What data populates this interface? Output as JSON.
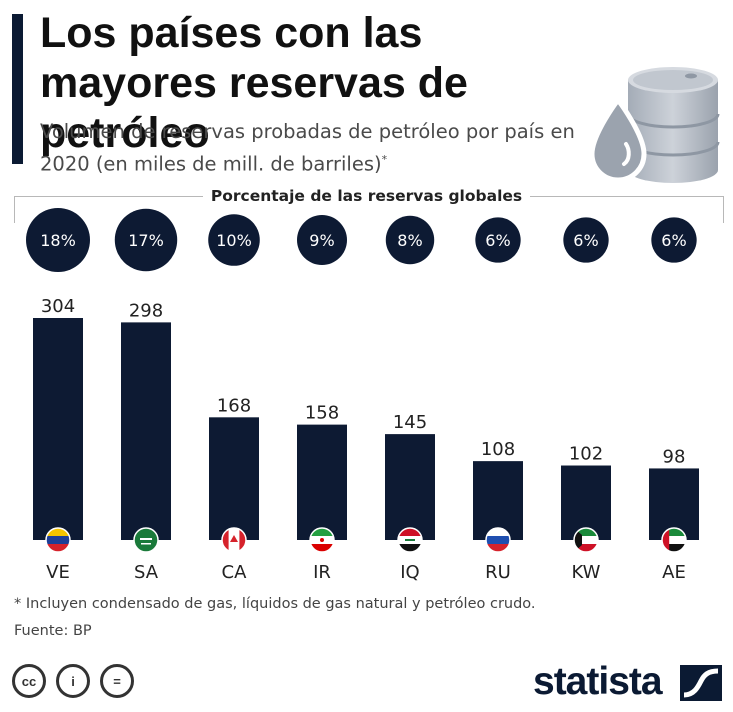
{
  "header": {
    "title": "Los países con las mayores reservas de petróleo",
    "subtitle": "Volumen de reservas probadas de petróleo por país en 2020 (en miles de mill. de barriles)",
    "subtitle_mark": "*"
  },
  "colors": {
    "navy": "#0b1a33",
    "bar": "#0d1a33",
    "accent": "#0b1a33"
  },
  "chart_data": {
    "type": "bar",
    "title": "Los países con las mayores reservas de petróleo",
    "xlabel": "",
    "ylabel": "",
    "ylim": [
      0,
      304
    ],
    "grid": false,
    "categories": [
      "VE",
      "SA",
      "CA",
      "IR",
      "IQ",
      "RU",
      "KW",
      "AE"
    ],
    "values": [
      304,
      298,
      168,
      158,
      145,
      108,
      102,
      98
    ],
    "share_label": "Porcentaje de las reservas globales",
    "shares": [
      "18%",
      "17%",
      "10%",
      "9%",
      "8%",
      "6%",
      "6%",
      "6%"
    ],
    "share_values": [
      18,
      17,
      10,
      9,
      8,
      6,
      6,
      6
    ]
  },
  "footer": {
    "footnote": "* Incluyen condensado de gas, líquidos de gas natural y petróleo crudo.",
    "source": "Fuente: BP",
    "brand": "statista",
    "license": [
      "cc",
      "i",
      "="
    ]
  },
  "icons": [
    "oil-barrel-icon",
    "oil-drop-icon",
    "cc-icon",
    "by-icon",
    "nd-icon",
    "statista-logo-icon"
  ]
}
